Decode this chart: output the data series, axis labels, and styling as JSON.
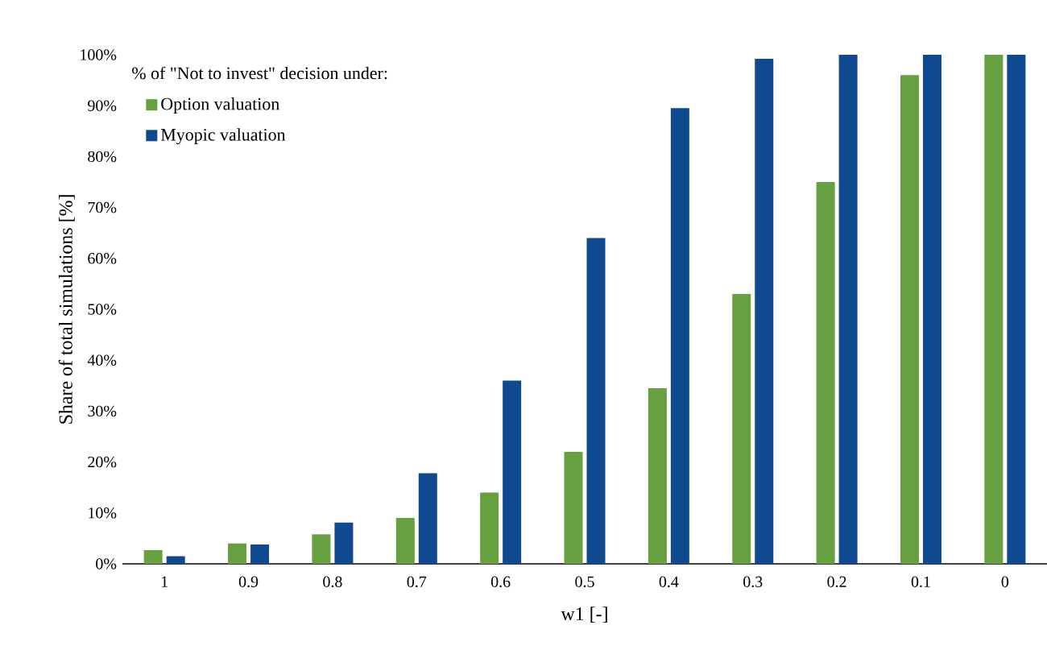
{
  "chart_data": {
    "type": "bar",
    "xlabel": "w1 [-]",
    "ylabel": "Share of total simulations [%]",
    "legend_title": "% of \"Not to invest\" decision under:",
    "legend": "top left",
    "grid": false,
    "categories": [
      "1",
      "0.9",
      "0.8",
      "0.7",
      "0.6",
      "0.5",
      "0.4",
      "0.3",
      "0.2",
      "0.1",
      "0"
    ],
    "series": [
      {
        "name": "Option valuation",
        "color": "#66a040",
        "values": [
          2.7,
          4,
          5.8,
          9,
          14,
          22,
          34.5,
          53,
          75,
          96,
          100
        ]
      },
      {
        "name": "Myopic valuation",
        "color": "#0f4a90",
        "values": [
          1.5,
          3.8,
          8.1,
          17.8,
          36,
          64,
          89.5,
          99.2,
          100,
          100,
          100
        ]
      }
    ],
    "ylim": [
      0,
      100
    ],
    "yticks": [
      {
        "value": 0,
        "label": "0%"
      },
      {
        "value": 10,
        "label": "10%"
      },
      {
        "value": 20,
        "label": "20%"
      },
      {
        "value": 30,
        "label": "30%"
      },
      {
        "value": 40,
        "label": "40%"
      },
      {
        "value": 50,
        "label": "50%"
      },
      {
        "value": 60,
        "label": "60%"
      },
      {
        "value": 70,
        "label": "70%"
      },
      {
        "value": 80,
        "label": "80%"
      },
      {
        "value": 90,
        "label": "90%"
      },
      {
        "value": 100,
        "label": "100%"
      }
    ]
  }
}
